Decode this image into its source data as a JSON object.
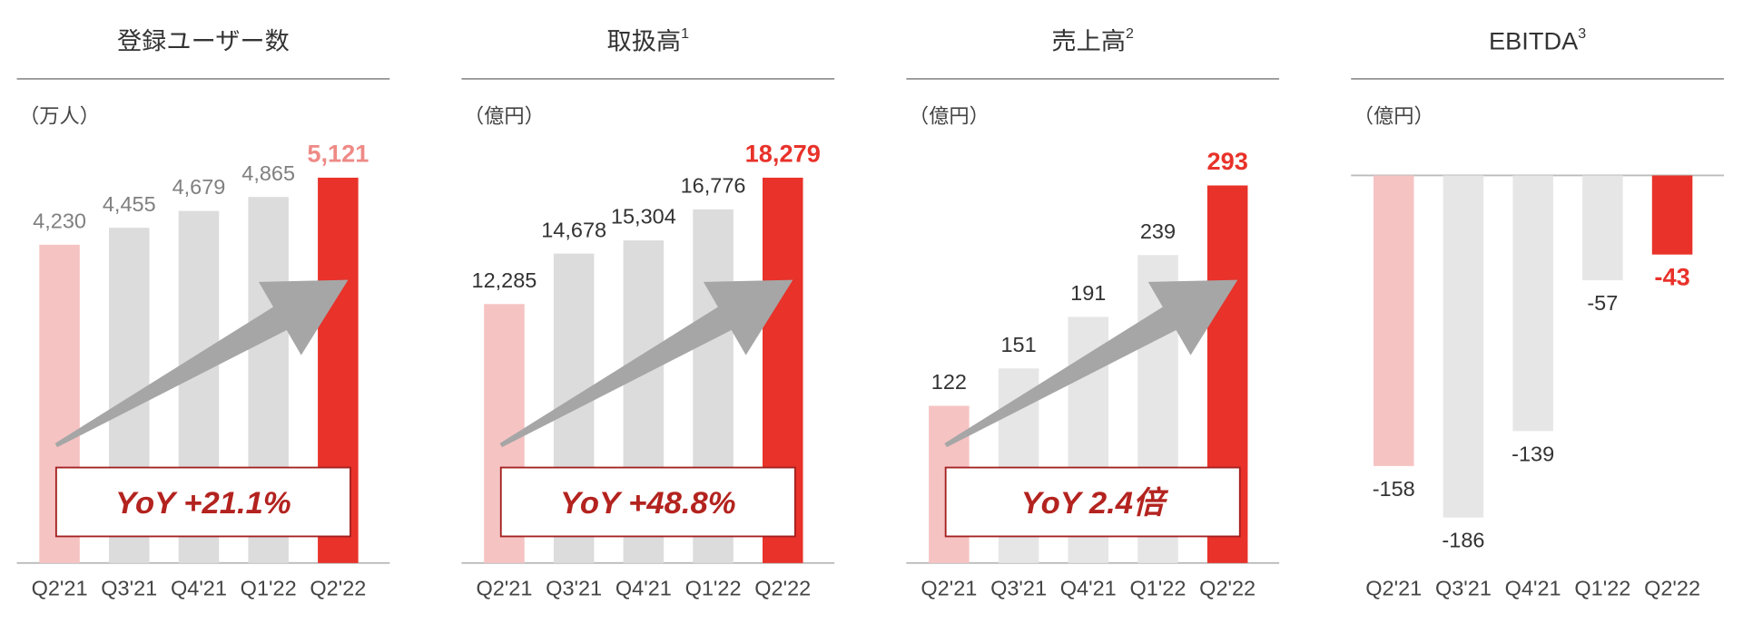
{
  "chart_data": [
    {
      "type": "bar",
      "title": "登録ユーザー数",
      "unit": "（万人）",
      "categories": [
        "Q2'21",
        "Q3'21",
        "Q4'21",
        "Q1'22",
        "Q2'22"
      ],
      "values": [
        4230,
        4455,
        4679,
        4865,
        5121
      ],
      "value_labels": [
        "4,230",
        "4,455",
        "4,679",
        "4,865",
        "5,121"
      ],
      "colors": [
        "#f6c3c3",
        "#dcdcdc",
        "#dcdcdc",
        "#dcdcdc",
        "#e8322a"
      ],
      "label_color": "#808080",
      "highlight_label_color": "#ee8a86",
      "annotation": "YoY +21.1%"
    },
    {
      "type": "bar",
      "title": "取扱高",
      "title_note": "1",
      "unit": "（億円）",
      "categories": [
        "Q2'21",
        "Q3'21",
        "Q4'21",
        "Q1'22",
        "Q2'22"
      ],
      "values": [
        12285,
        14678,
        15304,
        16776,
        18279
      ],
      "value_labels": [
        "12,285",
        "14,678",
        "15,304",
        "16,776",
        "18,279"
      ],
      "colors": [
        "#f6c3c3",
        "#dcdcdc",
        "#dcdcdc",
        "#dcdcdc",
        "#e8322a"
      ],
      "label_color": "#333333",
      "highlight_label_color": "#e8322a",
      "annotation": "YoY +48.8%"
    },
    {
      "type": "bar",
      "title": "売上高",
      "title_note": "2",
      "unit": "（億円）",
      "categories": [
        "Q2'21",
        "Q3'21",
        "Q4'21",
        "Q1'22",
        "Q2'22"
      ],
      "values": [
        122,
        151,
        191,
        239,
        293
      ],
      "colors": [
        "#f6c3c3",
        "#e6e6e6",
        "#e6e6e6",
        "#e6e6e6",
        "#e8322a"
      ],
      "label_color": "#333333",
      "highlight_label_color": "#e8322a",
      "annotation": "YoY 2.4倍"
    },
    {
      "type": "bar",
      "title": "EBITDA",
      "title_note": "3",
      "unit": "（億円）",
      "categories": [
        "Q2'21",
        "Q3'21",
        "Q4'21",
        "Q1'22",
        "Q2'22"
      ],
      "values": [
        -158,
        -186,
        -139,
        -57,
        -43
      ],
      "colors": [
        "#f6c3c3",
        "#e6e6e6",
        "#e6e6e6",
        "#e6e6e6",
        "#e8322a"
      ],
      "label_color": "#333333",
      "highlight_label_color": "#e8322a"
    }
  ]
}
